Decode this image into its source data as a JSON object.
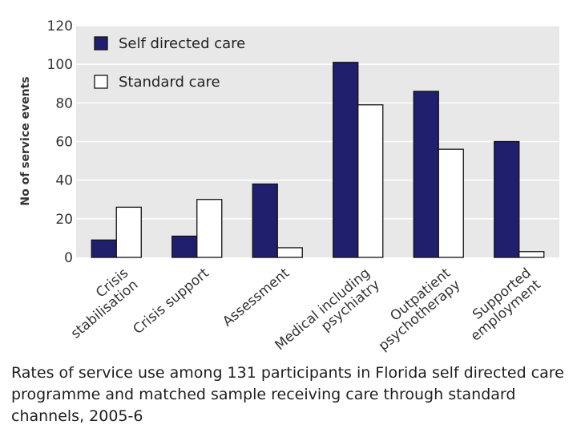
{
  "chart_data": {
    "type": "bar",
    "title": "",
    "xlabel": "",
    "ylabel": "No of service events",
    "ylim": [
      0,
      120
    ],
    "yticks": [
      0,
      20,
      40,
      60,
      80,
      100,
      120
    ],
    "grid": true,
    "legend_position": "top-left",
    "categories": [
      [
        "Crisis",
        "stabilisation"
      ],
      [
        "Crisis support"
      ],
      [
        "Assessment"
      ],
      [
        "Medical including",
        "psychiatry"
      ],
      [
        "Outpatient",
        "psychotherapy"
      ],
      [
        "Supported",
        "employment"
      ]
    ],
    "series": [
      {
        "name": "Self directed care",
        "color": "#1f1f6e",
        "values": [
          9,
          11,
          38,
          101,
          86,
          60
        ]
      },
      {
        "name": "Standard care",
        "color": "#ffffff",
        "values": [
          26,
          30,
          5,
          79,
          56,
          3
        ]
      }
    ],
    "colors": {
      "plot_background": "#e8e8e8",
      "gridline": "#ffffff",
      "edge": "#111111"
    }
  },
  "caption": "Rates of service use among 131 participants in Florida self directed care programme and  matched sample receiving care through standard channels, 2005-6"
}
